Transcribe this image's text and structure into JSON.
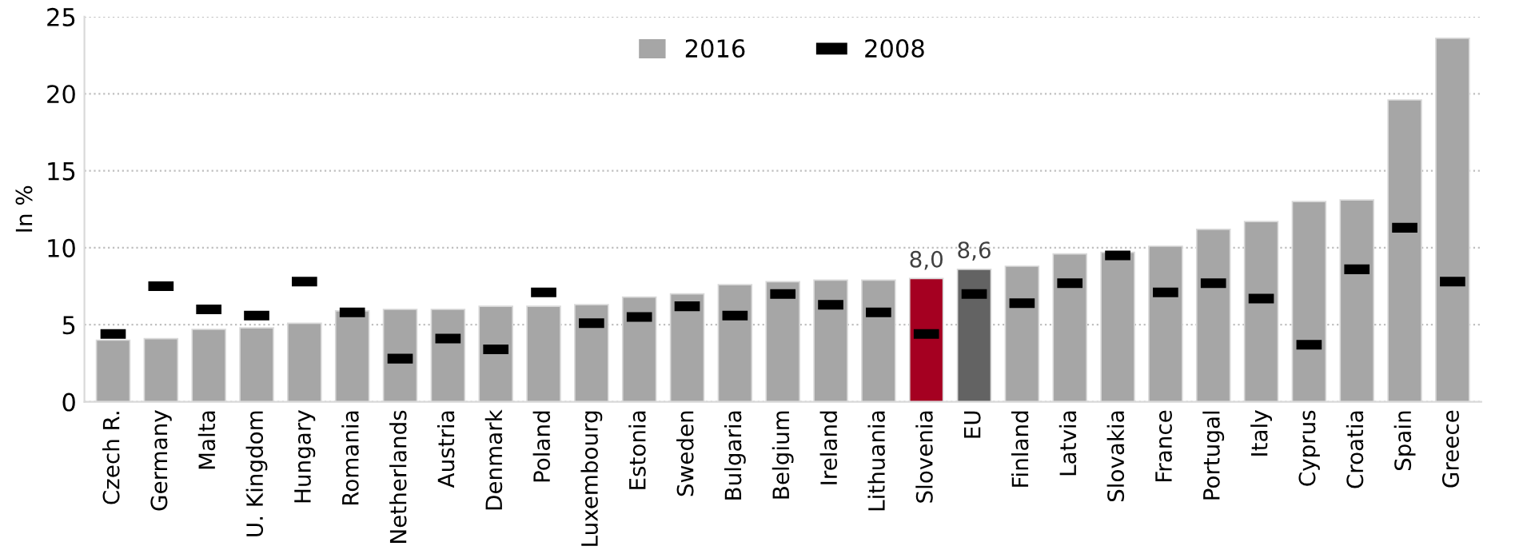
{
  "chart_data": {
    "type": "bar",
    "ylabel": "In %",
    "categories": [
      "Czech R.",
      "Germany",
      "Malta",
      "U. Kingdom",
      "Hungary",
      "Romania",
      "Netherlands",
      "Austria",
      "Denmark",
      "Poland",
      "Luxembourg",
      "Estonia",
      "Sweden",
      "Bulgaria",
      "Belgium",
      "Ireland",
      "Lithuania",
      "Slovenia",
      "EU",
      "Finland",
      "Latvia",
      "Slovakia",
      "France",
      "Portugal",
      "Italy",
      "Cyprus",
      "Croatia",
      "Spain",
      "Greece"
    ],
    "series": [
      {
        "name": "2016",
        "color": "#a6a6a6",
        "colors": [
          "#a6a6a6",
          "#a6a6a6",
          "#a6a6a6",
          "#a6a6a6",
          "#a6a6a6",
          "#a6a6a6",
          "#a6a6a6",
          "#a6a6a6",
          "#a6a6a6",
          "#a6a6a6",
          "#a6a6a6",
          "#a6a6a6",
          "#a6a6a6",
          "#a6a6a6",
          "#a6a6a6",
          "#a6a6a6",
          "#a6a6a6",
          "#a50021",
          "#636363",
          "#a6a6a6",
          "#a6a6a6",
          "#a6a6a6",
          "#a6a6a6",
          "#a6a6a6",
          "#a6a6a6",
          "#a6a6a6",
          "#a6a6a6",
          "#a6a6a6",
          "#a6a6a6"
        ],
        "values": [
          4.0,
          4.1,
          4.7,
          4.8,
          5.1,
          5.9,
          6.0,
          6.0,
          6.2,
          6.2,
          6.3,
          6.8,
          7.0,
          7.6,
          7.8,
          7.9,
          7.9,
          8.0,
          8.6,
          8.8,
          9.6,
          9.7,
          10.1,
          11.2,
          11.7,
          13.0,
          13.1,
          19.6,
          23.6
        ],
        "value_labels": [
          null,
          null,
          null,
          null,
          null,
          null,
          null,
          null,
          null,
          null,
          null,
          null,
          null,
          null,
          null,
          null,
          null,
          "8,0",
          "8,6",
          null,
          null,
          null,
          null,
          null,
          null,
          null,
          null,
          null,
          null
        ]
      },
      {
        "name": "2008",
        "type": "scatter",
        "color": "#000000",
        "values": [
          4.4,
          7.5,
          6.0,
          5.6,
          7.8,
          5.8,
          2.8,
          4.1,
          3.4,
          7.1,
          5.1,
          5.5,
          6.2,
          5.6,
          7.0,
          6.3,
          5.8,
          4.4,
          7.0,
          6.4,
          7.7,
          9.5,
          7.1,
          7.7,
          6.7,
          3.7,
          8.6,
          11.3,
          7.8
        ]
      }
    ],
    "ylim": [
      0,
      25
    ],
    "yticks": [
      0,
      5,
      10,
      15,
      20,
      25
    ],
    "grid": "y",
    "legend": "top"
  }
}
